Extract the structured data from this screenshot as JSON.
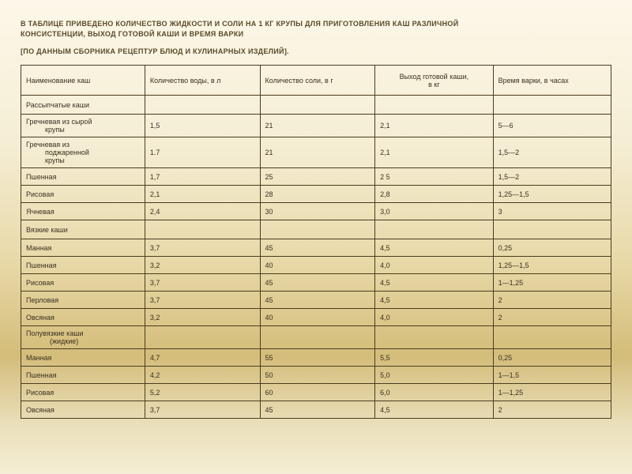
{
  "title_line1": "В ТАБЛИЦЕ ПРИВЕДЕНО КОЛИЧЕСТВО ЖИДКОСТИ И СОЛИ НА 1 КГ КРУПЫ ДЛЯ ПРИГОТОВЛЕНИЯ КАШ РАЗЛИЧНОЙ",
  "title_line2": "КОНСИСТЕНЦИИ, ВЫХОД ГОТОВОЙ КАШИ И ВРЕМЯ ВАРКИ",
  "subtitle": "[ПО ДАННЫМ СБОРНИКА РЕЦЕПТУР БЛЮД И КУЛИНАРНЫХ ИЗДЕЛИЙ].",
  "headers": {
    "c1": "Наименование каш",
    "c2": "Количество воды, в л",
    "c3": "Количество соли, в г",
    "c4_l1": "Выход готовой каши,",
    "c4_l2": "в кг",
    "c5": "Время варки, в часах"
  },
  "sections": {
    "s1": "Рассыпчатые каши",
    "s2": "Вязкие каши",
    "s3_l1": "Полувязкие каши",
    "s3_l2": "(жидкие)"
  },
  "rows": {
    "r1": {
      "n1": "Гречневая из сырой",
      "n2": "крупы",
      "w": "1,5",
      "s": "21",
      "y": "2,1",
      "t": "5—6"
    },
    "r2": {
      "n1": "Гречневая из",
      "n2": "поджаренной",
      "n3": "крупы",
      "w": "1.7",
      "s": "21",
      "y": "2,1",
      "t": "1,5—2"
    },
    "r3": {
      "n": "Пшенная",
      "w": "1,7",
      "s": "25",
      "y": "2 5",
      "t": "1,5—2"
    },
    "r4": {
      "n": "Рисовая",
      "w": "2,1",
      "s": "28",
      "y": "2,8",
      "t": "1,25—1,5"
    },
    "r5": {
      "n": "Ячневая",
      "w": "2,4",
      "s": "30",
      "y": "3,0",
      "t": "3"
    },
    "r6": {
      "n": "Манная",
      "w": "3,7",
      "s": "45",
      "y": "4,5",
      "t": "0,25"
    },
    "r7": {
      "n": "Пшенная",
      "w": "3,2",
      "s": "40",
      "y": "4,0",
      "t": "1,25—1,5"
    },
    "r8": {
      "n": "Рисовая",
      "w": "3,7",
      "s": "45",
      "y": "4,5",
      "t": "1—1,25"
    },
    "r9": {
      "n": "Перловая",
      "w": "3,7",
      "s": "45",
      "y": "4,5",
      "t": "2"
    },
    "r10": {
      "n": "Овсяная",
      "w": "3,2",
      "s": "40",
      "y": "4,0",
      "t": "2"
    },
    "r11": {
      "n": "Манная",
      "w": "4,7",
      "s": "55",
      "y": "5,5",
      "t": "0,25"
    },
    "r12": {
      "n": "Пшенная",
      "w": "4,2",
      "s": "50",
      "y": "5,0",
      "t": "1—1,5"
    },
    "r13": {
      "n": "Рисовая",
      "w": "5,2",
      "s": "60",
      "y": "6,0",
      "t": "1—1,25"
    },
    "r14": {
      "n": "Овсяная",
      "w": "3,7",
      "s": "45",
      "y": "4,5",
      "t": "2"
    }
  }
}
